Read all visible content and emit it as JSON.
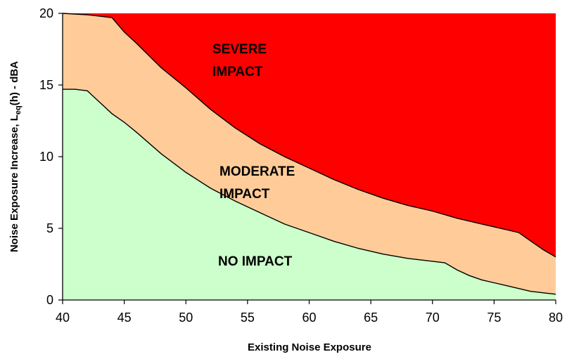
{
  "chart_data": {
    "type": "area",
    "title": "",
    "xlabel": "Existing Noise Exposure",
    "ylabel_parts": {
      "main": "Noise Exposure Increase, L",
      "subscript": "eq",
      "suffix": "(h) - dBA"
    },
    "xlim": [
      40,
      80
    ],
    "ylim": [
      0,
      20
    ],
    "x_ticks": [
      40,
      45,
      50,
      55,
      60,
      65,
      70,
      75,
      80
    ],
    "y_ticks": [
      0,
      5,
      10,
      15,
      20
    ],
    "grid": false,
    "legend": "none",
    "boundaries": [
      {
        "name": "lower",
        "x": [
          40,
          41,
          42,
          43,
          44,
          45,
          46,
          48,
          50,
          52,
          54,
          56,
          58,
          60,
          62,
          64,
          66,
          68,
          70,
          71,
          72,
          73,
          74,
          75,
          76,
          77,
          78,
          79,
          80
        ],
        "y": [
          14.7,
          14.7,
          14.6,
          13.8,
          13.0,
          12.4,
          11.7,
          10.2,
          8.9,
          7.8,
          6.9,
          6.1,
          5.3,
          4.7,
          4.1,
          3.6,
          3.2,
          2.9,
          2.7,
          2.6,
          2.1,
          1.7,
          1.4,
          1.2,
          1.0,
          0.8,
          0.6,
          0.5,
          0.4
        ]
      },
      {
        "name": "upper",
        "x": [
          40,
          42,
          44,
          45,
          46,
          48,
          50,
          52,
          54,
          56,
          58,
          60,
          62,
          64,
          66,
          68,
          70,
          72,
          74,
          76,
          77,
          78,
          79,
          80
        ],
        "y": [
          20.0,
          19.9,
          19.7,
          18.7,
          17.9,
          16.2,
          14.8,
          13.3,
          12.0,
          10.9,
          10.0,
          9.2,
          8.4,
          7.7,
          7.1,
          6.6,
          6.2,
          5.7,
          5.3,
          4.9,
          4.7,
          4.1,
          3.5,
          3.0
        ]
      }
    ],
    "regions": [
      {
        "name": "no-impact",
        "label_lines": [
          "NO IMPACT"
        ],
        "color": "#ccffcc"
      },
      {
        "name": "moderate-impact",
        "label_lines": [
          "MODERATE",
          "IMPACT"
        ],
        "color": "#ffcc99"
      },
      {
        "name": "severe-impact",
        "label_lines": [
          "SEVERE",
          "IMPACT"
        ],
        "color": "#ff0000"
      }
    ],
    "colors": {
      "boundary_line": "#000000",
      "axis": "#000000"
    }
  }
}
